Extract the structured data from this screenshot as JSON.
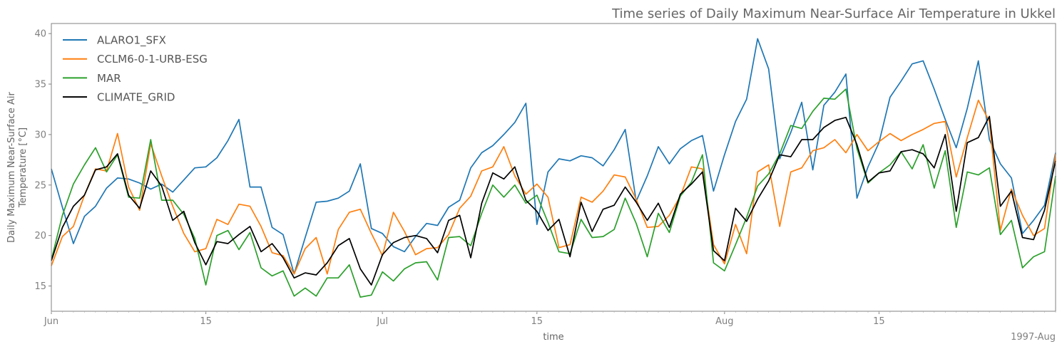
{
  "chart_data": {
    "type": "line",
    "title": "Time series of Daily Maximum Near-Surface Air Temperature in Ukkel",
    "xlabel": "time",
    "ylabel": "Daily Maximum Near-Surface Air Temperature [°C]",
    "ylabel_lines": [
      "Daily Maximum Near-Surface Air",
      "Temperature [°C]"
    ],
    "x_start": "1997-06-01",
    "x_end": "1997-08-31",
    "xlim": [
      "1997-06-01",
      "1997-08-31"
    ],
    "ylim": [
      12.5,
      41.0
    ],
    "x_ticks": [
      {
        "date": "1997-06-01",
        "label": "Jun"
      },
      {
        "date": "1997-06-15",
        "label": "15"
      },
      {
        "date": "1997-07-01",
        "label": "Jul"
      },
      {
        "date": "1997-07-15",
        "label": "15"
      },
      {
        "date": "1997-08-01",
        "label": "Aug"
      },
      {
        "date": "1997-08-15",
        "label": "15"
      }
    ],
    "x_offset_label": "1997-Aug",
    "y_ticks": [
      15,
      20,
      25,
      30,
      35,
      40
    ],
    "grid": false,
    "legend_position": "top-left",
    "series": [
      {
        "name": "ALARO1_SFX",
        "color": "#1f77b4",
        "values": [
          26.6,
          22.8,
          19.2,
          21.9,
          22.9,
          24.7,
          25.7,
          25.6,
          25.2,
          24.6,
          25.1,
          24.3,
          25.5,
          26.7,
          26.8,
          27.7,
          29.4,
          31.5,
          24.8,
          24.8,
          20.8,
          20.1,
          16.2,
          19.8,
          23.3,
          23.4,
          23.7,
          24.4,
          27.1,
          20.7,
          20.2,
          18.9,
          18.4,
          19.9,
          21.2,
          21.0,
          22.8,
          23.5,
          26.7,
          28.2,
          28.9,
          30.0,
          31.2,
          33.1,
          21.1,
          26.3,
          27.6,
          27.4,
          27.9,
          27.7,
          26.9,
          28.5,
          30.5,
          23.4,
          25.9,
          28.8,
          27.1,
          28.6,
          29.4,
          29.9,
          24.4,
          28.0,
          31.3,
          33.5,
          39.5,
          36.5,
          27.6,
          30.2,
          33.2,
          26.5,
          32.9,
          34.2,
          36.0,
          23.7,
          26.8,
          29.2,
          33.7,
          35.3,
          37.0,
          37.3,
          34.5,
          31.5,
          28.7,
          32.6,
          37.3,
          29.5,
          27.1,
          25.7,
          20.2,
          21.5,
          23.0,
          28.2
        ]
      },
      {
        "name": "CCLM6-0-1-URB-ESG",
        "color": "#ff7f0e",
        "values": [
          17.0,
          19.9,
          20.9,
          24.0,
          26.6,
          26.4,
          30.1,
          24.8,
          22.5,
          29.1,
          25.9,
          22.9,
          20.2,
          18.4,
          18.7,
          21.6,
          21.1,
          23.1,
          22.9,
          20.9,
          18.3,
          18.0,
          16.2,
          18.7,
          19.8,
          16.2,
          20.6,
          22.3,
          22.6,
          20.2,
          18.0,
          22.3,
          20.4,
          18.1,
          18.7,
          18.8,
          20.1,
          22.7,
          23.9,
          26.4,
          26.8,
          28.8,
          25.9,
          24.1,
          25.1,
          23.8,
          18.8,
          19.1,
          23.8,
          23.3,
          24.4,
          26.0,
          25.8,
          23.6,
          20.8,
          20.9,
          22.0,
          23.9,
          26.8,
          26.6,
          19.1,
          17.2,
          21.1,
          18.2,
          26.3,
          27.0,
          20.9,
          26.3,
          26.7,
          28.4,
          28.7,
          29.5,
          28.2,
          30.0,
          28.4,
          29.3,
          30.1,
          29.4,
          30.0,
          30.5,
          31.1,
          31.3,
          25.8,
          29.7,
          33.4,
          31.3,
          20.5,
          24.6,
          22.0,
          20.0,
          20.7,
          28.1
        ]
      },
      {
        "name": "MAR",
        "color": "#2ca02c",
        "values": [
          17.6,
          22.0,
          25.1,
          27.0,
          28.7,
          26.3,
          28.0,
          23.8,
          23.7,
          29.5,
          23.5,
          23.5,
          22.1,
          19.7,
          15.1,
          20.0,
          20.5,
          18.6,
          20.3,
          16.8,
          16.0,
          16.5,
          14.0,
          14.8,
          14.0,
          15.8,
          15.8,
          17.1,
          13.9,
          14.1,
          16.4,
          15.5,
          16.7,
          17.3,
          17.4,
          15.6,
          19.8,
          19.9,
          19.0,
          22.2,
          25.0,
          23.8,
          25.0,
          23.2,
          24.0,
          21.3,
          18.4,
          18.2,
          21.6,
          19.8,
          19.9,
          20.6,
          23.7,
          21.2,
          17.9,
          22.2,
          20.3,
          23.9,
          25.3,
          28.0,
          17.3,
          16.5,
          19.1,
          21.8,
          24.9,
          26.1,
          28.1,
          30.9,
          30.6,
          32.3,
          33.6,
          33.5,
          34.5,
          28.6,
          25.2,
          26.2,
          27.0,
          28.3,
          26.6,
          29.0,
          24.7,
          28.4,
          20.8,
          26.3,
          26.0,
          26.7,
          20.1,
          21.5,
          16.8,
          17.9,
          18.4,
          25.9
        ]
      },
      {
        "name": "CLIMATE_GRID",
        "color": "#000000",
        "values": [
          17.5,
          20.8,
          22.9,
          24.0,
          26.5,
          26.8,
          28.1,
          24.0,
          22.7,
          26.4,
          24.9,
          21.5,
          22.4,
          19.3,
          17.1,
          19.4,
          19.2,
          20.1,
          20.9,
          18.4,
          19.2,
          17.8,
          15.8,
          16.3,
          16.1,
          17.3,
          19.0,
          19.7,
          16.7,
          15.1,
          18.1,
          19.3,
          19.8,
          20.0,
          19.7,
          18.3,
          21.5,
          22.0,
          17.8,
          23.2,
          26.2,
          25.6,
          26.8,
          23.5,
          22.4,
          20.5,
          21.6,
          17.9,
          23.3,
          20.4,
          22.6,
          23.0,
          24.8,
          23.3,
          21.5,
          23.2,
          20.8,
          24.1,
          25.1,
          26.3,
          18.5,
          17.5,
          22.7,
          21.4,
          23.6,
          25.4,
          28.0,
          27.8,
          29.5,
          29.5,
          30.7,
          31.4,
          31.7,
          29.0,
          25.3,
          26.2,
          26.4,
          28.3,
          28.5,
          28.1,
          26.7,
          30.0,
          22.4,
          29.2,
          29.7,
          31.8,
          22.9,
          24.4,
          19.8,
          19.6,
          22.5,
          27.4
        ]
      }
    ]
  }
}
